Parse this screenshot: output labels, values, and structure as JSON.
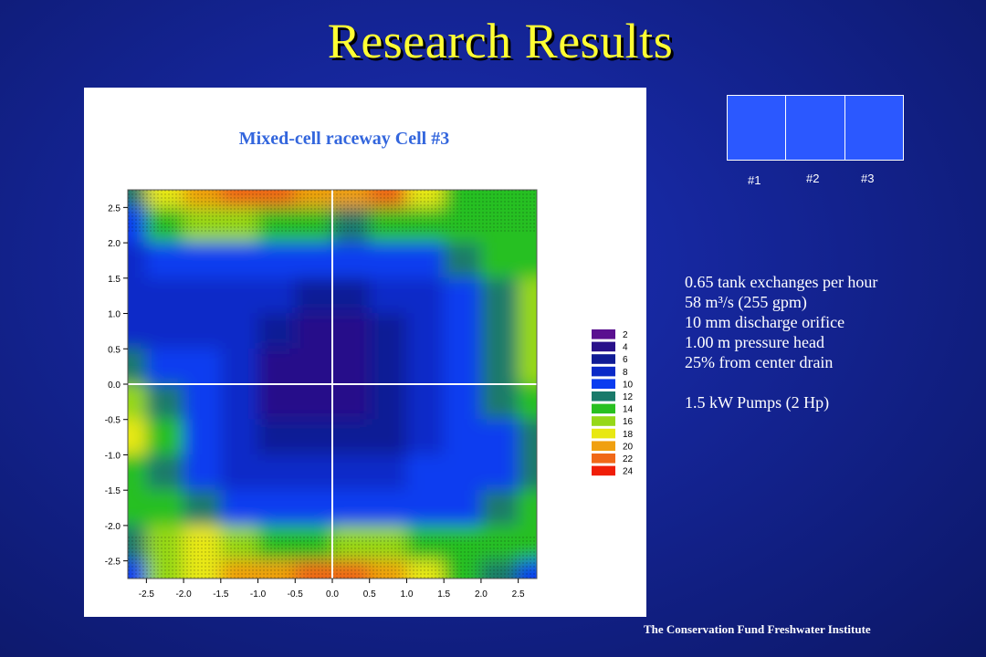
{
  "slide": {
    "title": "Research Results",
    "footer": "The Conservation Fund Freshwater Institute"
  },
  "cells": {
    "labels": [
      "#1",
      "#2",
      "#3"
    ],
    "fill_color": "#2b58ff"
  },
  "info": {
    "lines": [
      "0.65 tank exchanges per hour",
      "58 m³/s (255 gpm)",
      "10 mm discharge orifice",
      "1.00 m pressure head",
      "25% from center drain",
      "1.5 kW Pumps (2 Hp)"
    ]
  },
  "chart_data": {
    "type": "heatmap",
    "title": "Mixed-cell raceway Cell #3",
    "xlabel": "",
    "ylabel": "",
    "xlim": [
      -2.75,
      2.75
    ],
    "ylim": [
      -2.75,
      2.75
    ],
    "x_ticks": [
      -2.5,
      -2.0,
      -1.5,
      -1.0,
      -0.5,
      0.0,
      0.5,
      1.0,
      1.5,
      2.0,
      2.5
    ],
    "y_ticks": [
      2.5,
      2.0,
      1.5,
      1.0,
      0.5,
      0.0,
      -0.5,
      -1.0,
      -1.5,
      -2.0,
      -2.5
    ],
    "x_tick_labels": [
      "-2.5",
      "-2.0",
      "-1.5",
      "-1.0",
      "-0.5",
      "0.0",
      "0.5",
      "1.0",
      "1.5",
      "2.0",
      "2.5"
    ],
    "y_tick_labels": [
      "2.5",
      "2.0",
      "1.5",
      "1.0",
      "0.5",
      "0.0",
      "-0.5",
      "-1.0",
      "-1.5",
      "-2.0",
      "-2.5"
    ],
    "crosshair": {
      "x": 0.0,
      "y": 0.0
    },
    "legend": {
      "placement": "right",
      "levels": [
        2,
        4,
        6,
        8,
        10,
        12,
        14,
        16,
        18,
        20,
        22,
        24
      ],
      "colors": [
        "#5a1090",
        "#28108a",
        "#101c96",
        "#0a2ac8",
        "#0a3cf0",
        "#1a7a6a",
        "#28c020",
        "#96d818",
        "#e8e812",
        "#f0a010",
        "#f06818",
        "#f01e08"
      ]
    },
    "grid_x": [
      -2.75,
      -2.25,
      -1.75,
      -1.25,
      -0.75,
      -0.25,
      0.25,
      0.75,
      1.25,
      1.75,
      2.25,
      2.75
    ],
    "grid_y": [
      2.75,
      2.25,
      1.75,
      1.25,
      0.75,
      0.25,
      -0.25,
      -0.75,
      -1.25,
      -1.75,
      -2.25,
      -2.75
    ],
    "values": [
      [
        12,
        18,
        20,
        22,
        22,
        20,
        20,
        22,
        18,
        14,
        14,
        13
      ],
      [
        10,
        14,
        16,
        15,
        14,
        13,
        12,
        14,
        14,
        13,
        14,
        14
      ],
      [
        8,
        9,
        10,
        10,
        10,
        9,
        9,
        9,
        10,
        12,
        13,
        14
      ],
      [
        8,
        8,
        8,
        8,
        7,
        6,
        6,
        7,
        8,
        10,
        12,
        15
      ],
      [
        8,
        8,
        8,
        7,
        5,
        4,
        4,
        5,
        7,
        9,
        11,
        16
      ],
      [
        12,
        10,
        9,
        7,
        4,
        3,
        3,
        5,
        7,
        9,
        11,
        16
      ],
      [
        16,
        12,
        9,
        7,
        4,
        3,
        3,
        5,
        7,
        9,
        11,
        14
      ],
      [
        17,
        13,
        9,
        8,
        6,
        5,
        5,
        6,
        8,
        9,
        10,
        12
      ],
      [
        14,
        12,
        9,
        8,
        8,
        8,
        8,
        8,
        9,
        9,
        10,
        12
      ],
      [
        13,
        14,
        12,
        10,
        10,
        10,
        10,
        10,
        10,
        10,
        12,
        14
      ],
      [
        12,
        16,
        18,
        16,
        14,
        14,
        16,
        16,
        14,
        14,
        14,
        14
      ],
      [
        10,
        16,
        18,
        19,
        20,
        22,
        22,
        20,
        18,
        14,
        12,
        10
      ]
    ]
  }
}
